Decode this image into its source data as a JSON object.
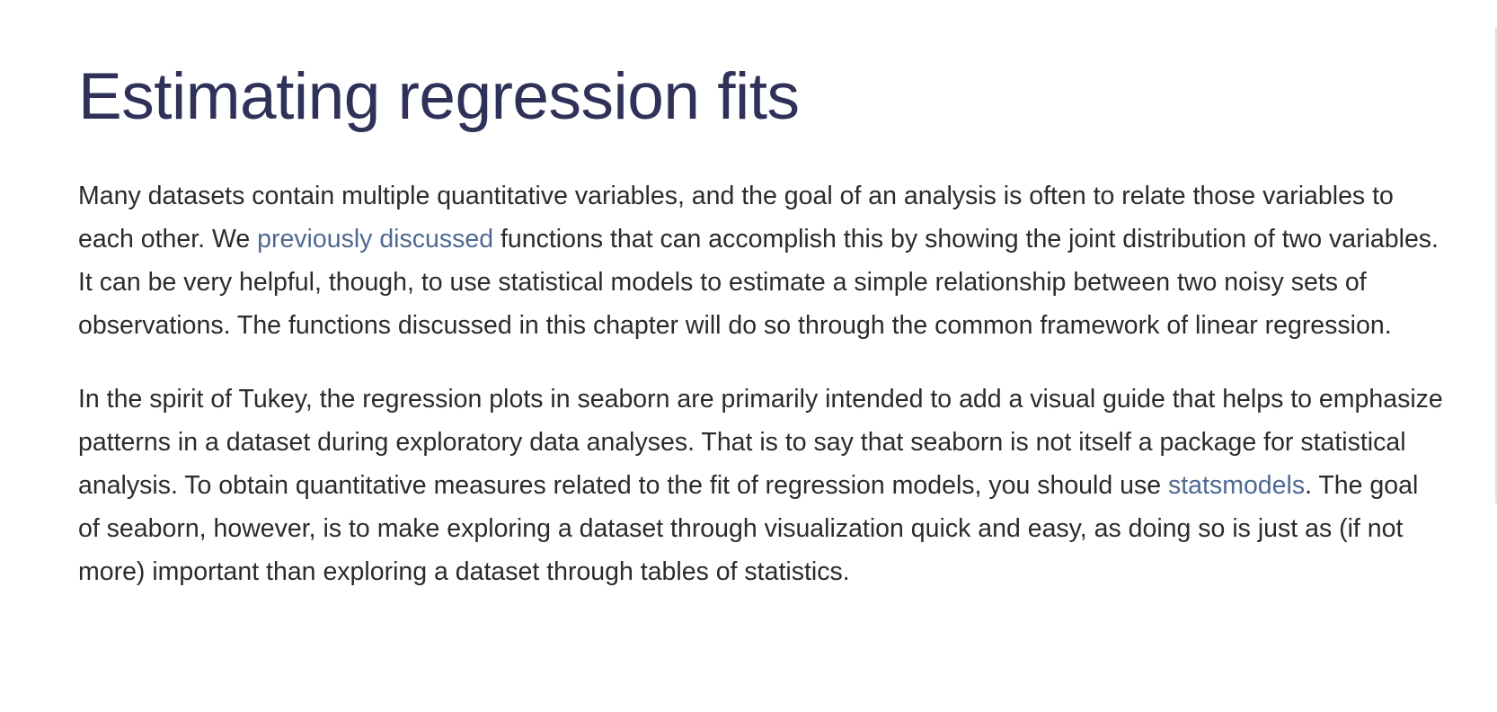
{
  "title": "Estimating regression fits",
  "paragraphs": [
    {
      "part1": "Many datasets contain multiple quantitative variables, and the goal of an analysis is often to relate those variables to each other. We ",
      "link": "previously discussed",
      "part2": " functions that can accomplish this by showing the joint distribution of two variables. It can be very helpful, though, to use statistical models to estimate a simple relationship between two noisy sets of observations. The functions discussed in this chapter will do so through the common framework of linear regression."
    },
    {
      "part1": "In the spirit of Tukey, the regression plots in seaborn are primarily intended to add a visual guide that helps to emphasize patterns in a dataset during exploratory data analyses. That is to say that seaborn is not itself a package for statistical analysis. To obtain quantitative measures related to the fit of regression models, you should use ",
      "link": "statsmodels",
      "part2": ". The goal of seaborn, however, is to make exploring a dataset through visualization quick and easy, as doing so is just as (if not more) important than exploring a dataset through tables of statistics."
    }
  ],
  "colors": {
    "heading": "#2f3158",
    "body_text": "#2b2b2b",
    "link": "#4f6a92",
    "background": "#ffffff"
  }
}
